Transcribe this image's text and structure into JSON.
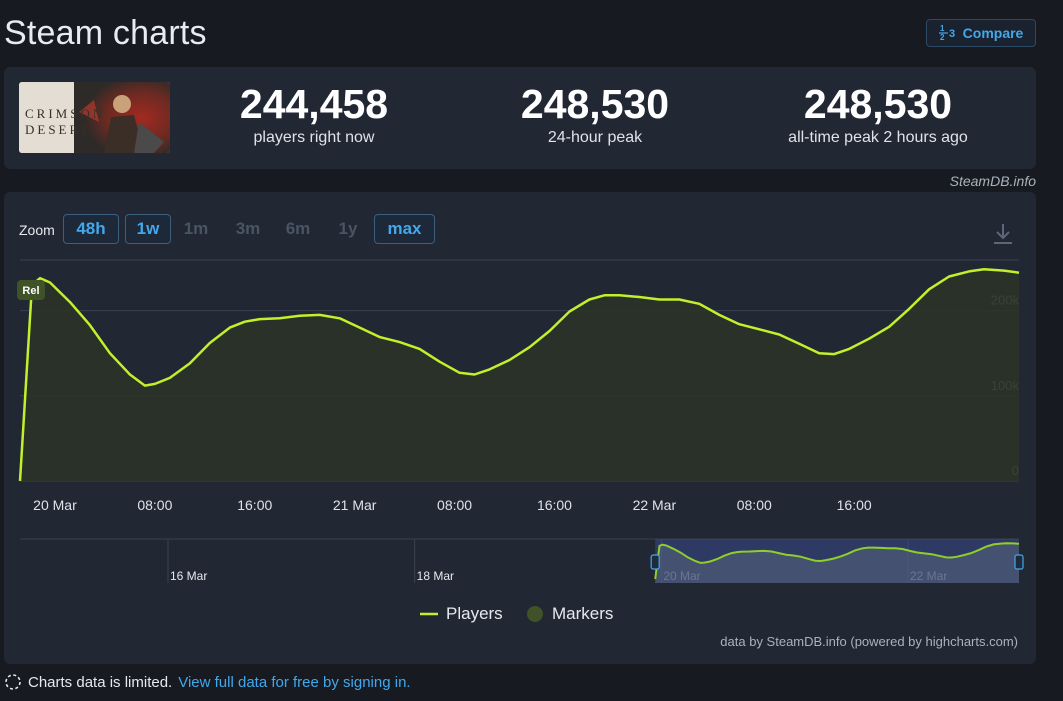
{
  "page": {
    "title": "Steam charts",
    "compare_label": "Compare",
    "compare_icon_text": "1⁄2 3"
  },
  "game": {
    "title_text": "CRIMSON DESERT"
  },
  "stats": [
    {
      "value": "244,458",
      "label": "players right now"
    },
    {
      "value": "248,530",
      "label": "24-hour peak"
    },
    {
      "value": "248,530",
      "label": "all-time peak 2 hours ago"
    }
  ],
  "credit_top": "SteamDB.info",
  "zoom": {
    "label": "Zoom",
    "buttons": [
      {
        "label": "48h",
        "state": "active"
      },
      {
        "label": "1w",
        "state": "active"
      },
      {
        "label": "1m",
        "state": "disabled"
      },
      {
        "label": "3m",
        "state": "disabled"
      },
      {
        "label": "6m",
        "state": "disabled"
      },
      {
        "label": "1y",
        "state": "disabled"
      },
      {
        "label": "max",
        "state": "active"
      }
    ]
  },
  "chart_data": {
    "type": "area",
    "series": [
      {
        "name": "Players",
        "color": "#c2f02a",
        "points": [
          [
            0,
            0
          ],
          [
            1.2,
            230000
          ],
          [
            2.0,
            238000
          ],
          [
            3.0,
            233000
          ],
          [
            5.0,
            210000
          ],
          [
            7.0,
            183000
          ],
          [
            9.0,
            150000
          ],
          [
            11.0,
            125000
          ],
          [
            12.5,
            112000
          ],
          [
            13.5,
            114000
          ],
          [
            15.0,
            121000
          ],
          [
            17.0,
            138000
          ],
          [
            19.0,
            162000
          ],
          [
            21.0,
            180000
          ],
          [
            22.5,
            187000
          ],
          [
            24.0,
            190000
          ],
          [
            26.0,
            191000
          ],
          [
            28.0,
            194000
          ],
          [
            30.0,
            195000
          ],
          [
            32.0,
            191000
          ],
          [
            34.0,
            180000
          ],
          [
            36.0,
            169000
          ],
          [
            38.0,
            163000
          ],
          [
            40.0,
            155000
          ],
          [
            42.0,
            140000
          ],
          [
            44.0,
            127000
          ],
          [
            45.5,
            125000
          ],
          [
            47.0,
            131000
          ],
          [
            49.0,
            142000
          ],
          [
            51.0,
            157000
          ],
          [
            53.0,
            176000
          ],
          [
            55.0,
            199000
          ],
          [
            57.0,
            213000
          ],
          [
            58.5,
            218000
          ],
          [
            60.0,
            218000
          ],
          [
            62.0,
            216000
          ],
          [
            64.0,
            213000
          ],
          [
            66.0,
            213000
          ],
          [
            68.0,
            208000
          ],
          [
            70.0,
            195000
          ],
          [
            72.0,
            184000
          ],
          [
            74.0,
            178000
          ],
          [
            76.0,
            172000
          ],
          [
            78.0,
            161000
          ],
          [
            80.0,
            150000
          ],
          [
            81.5,
            149000
          ],
          [
            83.0,
            155000
          ],
          [
            85.0,
            167000
          ],
          [
            87.0,
            181000
          ],
          [
            89.0,
            202000
          ],
          [
            91.0,
            225000
          ],
          [
            93.0,
            240000
          ],
          [
            95.0,
            246000
          ],
          [
            96.5,
            248530
          ],
          [
            98.5,
            247000
          ],
          [
            100.0,
            244458
          ]
        ]
      }
    ],
    "x_range_hours": [
      0,
      100
    ],
    "y_range": [
      0,
      250000
    ],
    "y_ticks": [
      0,
      100000,
      200000
    ],
    "y_tick_labels": [
      "0",
      "100k",
      "200k"
    ],
    "x_ticks": [
      {
        "x": 3.5,
        "label": "20 Mar"
      },
      {
        "x": 13.5,
        "label": "08:00"
      },
      {
        "x": 23.5,
        "label": "16:00"
      },
      {
        "x": 33.5,
        "label": "21 Mar"
      },
      {
        "x": 43.5,
        "label": "08:00"
      },
      {
        "x": 53.5,
        "label": "16:00"
      },
      {
        "x": 63.5,
        "label": "22 Mar"
      },
      {
        "x": 73.5,
        "label": "08:00"
      },
      {
        "x": 83.5,
        "label": "16:00"
      }
    ],
    "markers": [
      {
        "x": 1.2,
        "label": "Rel"
      }
    ],
    "grid": true,
    "legend": {
      "position": "bottom-center",
      "items": [
        "Players",
        "Markers"
      ]
    },
    "navigator": {
      "labels": [
        {
          "x": 16,
          "label": "16 Mar"
        },
        {
          "x": 18,
          "label": "18 Mar"
        },
        {
          "x": 20,
          "label": "20 Mar"
        },
        {
          "x": 22,
          "label": "22 Mar"
        }
      ],
      "selected_range_days": [
        19.95,
        22.9
      ],
      "total_range_days": [
        14.8,
        22.9
      ]
    }
  },
  "legend": {
    "players_label": "Players",
    "markers_label": "Markers",
    "players_color": "#c2f02a",
    "markers_color": "#3f5228"
  },
  "credit_bottom": "data by SteamDB.info (powered by highcharts.com)",
  "notice": {
    "text": "Charts data is limited.",
    "link": "View full data for free by signing in."
  }
}
